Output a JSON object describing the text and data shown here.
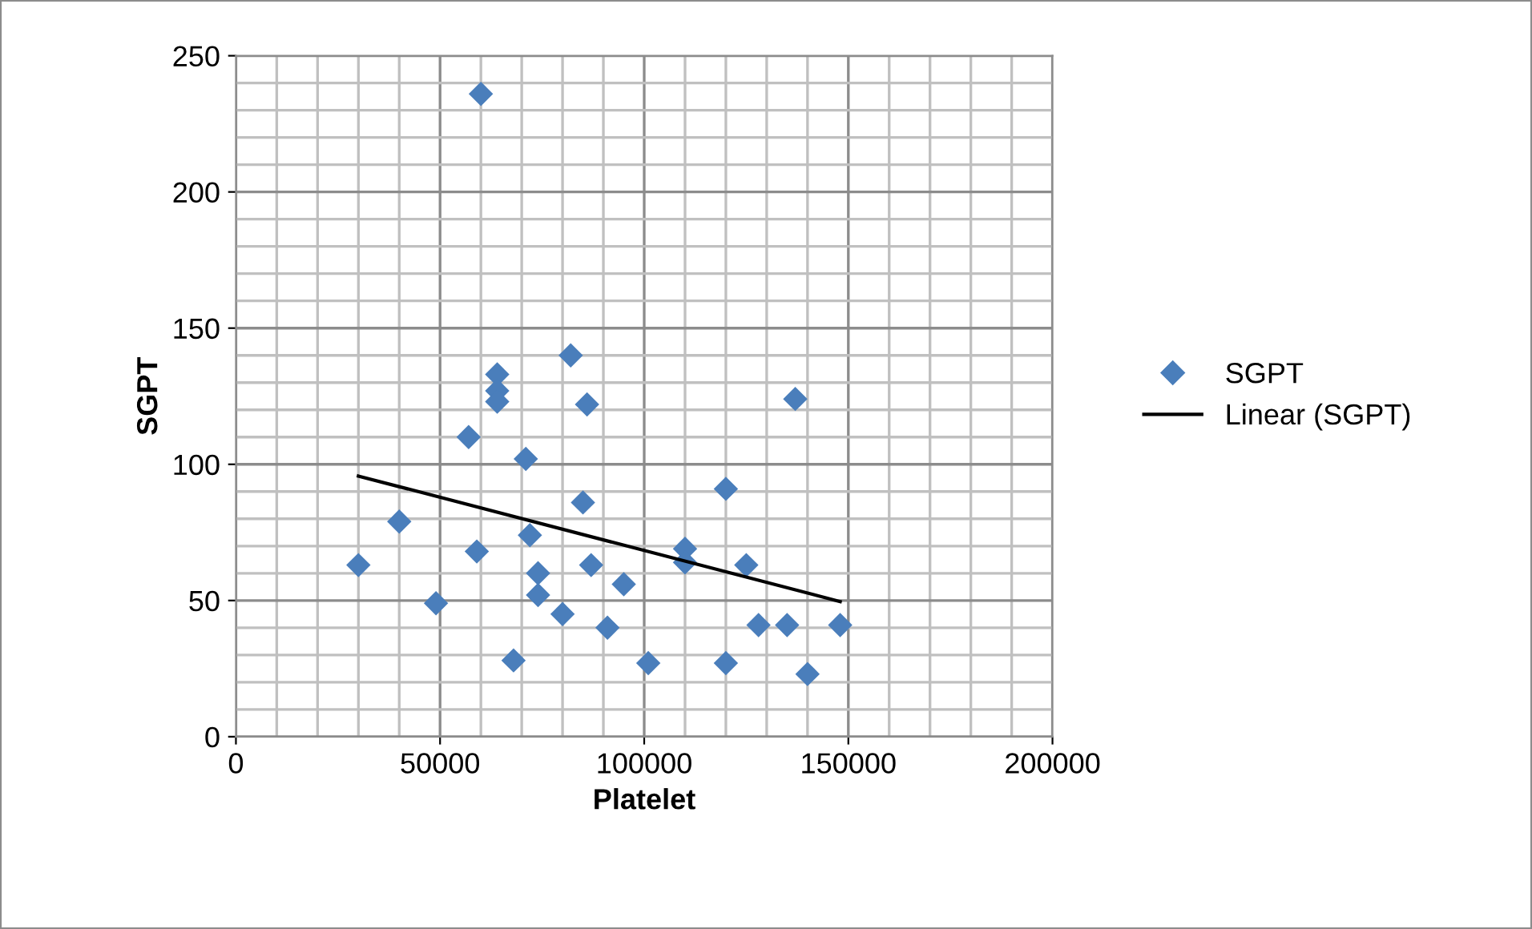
{
  "chart_data": {
    "type": "scatter",
    "xlabel": "Platelet",
    "ylabel": "SGPT",
    "xlim": [
      0,
      200000
    ],
    "xticks": [
      0,
      50000,
      100000,
      150000,
      200000
    ],
    "ylim": [
      0,
      250
    ],
    "yticks": [
      0,
      50,
      100,
      150,
      200,
      250
    ],
    "grid": true,
    "legend": "right",
    "marker": "diamond",
    "series": [
      {
        "name": "SGPT",
        "color": "#4a7ebb",
        "x": [
          60000,
          82000,
          64000,
          64000,
          64000,
          86000,
          57000,
          71000,
          85000,
          40000,
          72000,
          30000,
          59000,
          74000,
          87000,
          74000,
          95000,
          49000,
          80000,
          91000,
          68000,
          137000,
          120000,
          110000,
          110000,
          125000,
          128000,
          135000,
          148000,
          101000,
          120000,
          140000
        ],
        "values": [
          236,
          140,
          133,
          127,
          123,
          122,
          110,
          102,
          86,
          79,
          74,
          63,
          68,
          60,
          63,
          52,
          56,
          49,
          45,
          40,
          28,
          124,
          91,
          69,
          64,
          63,
          41,
          41,
          41,
          27,
          27,
          23
        ]
      },
      {
        "name": "Linear (SGPT)",
        "type": "line",
        "color": "#000000",
        "marker": "none",
        "line_style": "solid",
        "x": [
          30000,
          148000
        ],
        "values": [
          95.7,
          49.6
        ]
      }
    ]
  }
}
